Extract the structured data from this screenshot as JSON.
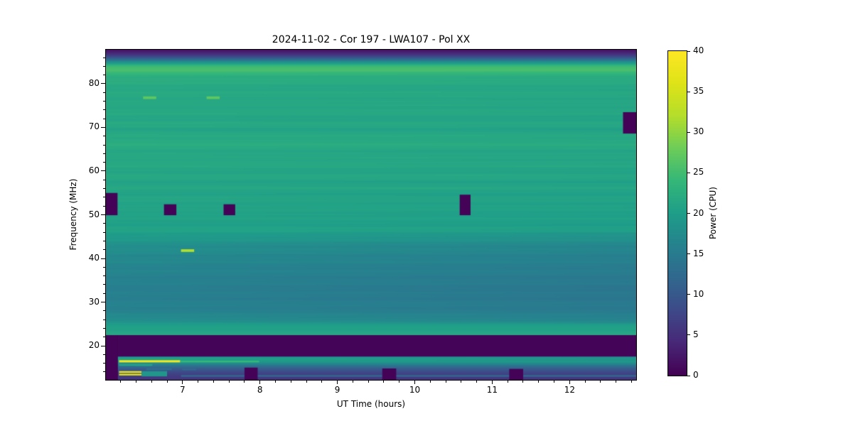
{
  "chart_data": {
    "type": "heatmap",
    "title": "2024-11-02 - Cor 197 - LWA107 - Pol XX",
    "xlabel": "UT Time (hours)",
    "ylabel": "Frequency (MHz)",
    "colorbar_label": "Power (CPU)",
    "x_range_hours": [
      6.01,
      12.86
    ],
    "y_range_mhz": [
      12.2,
      87.8
    ],
    "color_range": [
      0,
      40
    ],
    "x_major_ticks": [
      7,
      8,
      9,
      10,
      11,
      12
    ],
    "x_minor_step": 0.2,
    "y_major_ticks": [
      20,
      30,
      40,
      50,
      60,
      70,
      80
    ],
    "y_minor_step": 2,
    "colorbar_ticks": [
      0,
      5,
      10,
      15,
      20,
      25,
      30,
      35,
      40
    ],
    "colormap": "viridis",
    "grid": false,
    "viridis_anchors": [
      [
        0.0,
        "#440154"
      ],
      [
        0.1,
        "#482878"
      ],
      [
        0.2,
        "#3e4a89"
      ],
      [
        0.3,
        "#31688e"
      ],
      [
        0.4,
        "#26828e"
      ],
      [
        0.5,
        "#1f9e89"
      ],
      [
        0.6,
        "#35b779"
      ],
      [
        0.7,
        "#6dcd59"
      ],
      [
        0.8,
        "#b4de2c"
      ],
      [
        0.9,
        "#dfe318"
      ],
      [
        1.0,
        "#fde725"
      ]
    ],
    "spectrum_profile_mhz_power": [
      [
        87.8,
        1.5
      ],
      [
        87.0,
        4
      ],
      [
        86.2,
        8
      ],
      [
        85.4,
        14
      ],
      [
        84.8,
        19
      ],
      [
        84.2,
        23.5
      ],
      [
        83.7,
        25.5
      ],
      [
        83.0,
        25.0
      ],
      [
        82.0,
        23.2
      ],
      [
        81.0,
        22.3
      ],
      [
        80.0,
        22.0
      ],
      [
        78.5,
        21.6
      ],
      [
        77.0,
        21.9
      ],
      [
        75.5,
        21.4
      ],
      [
        74.0,
        21.9
      ],
      [
        72.5,
        21.3
      ],
      [
        71.0,
        21.7
      ],
      [
        69.5,
        21.2
      ],
      [
        68.0,
        21.8
      ],
      [
        66.5,
        22.3
      ],
      [
        65.0,
        21.8
      ],
      [
        63.5,
        21.3
      ],
      [
        62.0,
        21.9
      ],
      [
        60.5,
        21.2
      ],
      [
        59.0,
        21.6
      ],
      [
        57.5,
        21.0
      ],
      [
        56.0,
        21.4
      ],
      [
        54.5,
        20.8
      ],
      [
        53.0,
        21.2
      ],
      [
        51.5,
        20.7
      ],
      [
        50.0,
        20.9
      ],
      [
        48.5,
        20.4
      ],
      [
        47.0,
        20.7
      ],
      [
        45.5,
        20.2
      ],
      [
        44.5,
        19.3
      ],
      [
        43.5,
        18.4
      ],
      [
        42.5,
        17.8
      ],
      [
        41.5,
        17.4
      ],
      [
        40.0,
        17.0
      ],
      [
        38.5,
        16.6
      ],
      [
        37.0,
        16.3
      ],
      [
        35.5,
        16.0
      ],
      [
        34.0,
        15.8
      ],
      [
        32.5,
        15.6
      ],
      [
        31.0,
        15.7
      ],
      [
        29.5,
        15.9
      ],
      [
        28.0,
        16.2
      ],
      [
        27.0,
        16.8
      ],
      [
        26.0,
        17.8
      ],
      [
        25.2,
        19.0
      ],
      [
        24.4,
        20.2
      ],
      [
        23.6,
        21.0
      ],
      [
        22.9,
        21.5
      ],
      [
        22.45,
        21.5
      ],
      [
        22.4,
        0.4
      ],
      [
        17.55,
        0.4
      ],
      [
        17.45,
        19.5
      ],
      [
        17.0,
        21.0
      ],
      [
        16.6,
        20.0
      ],
      [
        15.9,
        17.0
      ],
      [
        15.4,
        13.5
      ],
      [
        14.8,
        10.5
      ],
      [
        14.0,
        8.0
      ],
      [
        13.2,
        6.5
      ],
      [
        12.2,
        5.5
      ]
    ],
    "horizontal_shading": [
      {
        "f_min": 25.0,
        "f_max": 46.0,
        "delta_left_to_right": -1.3
      },
      {
        "f_min": 46.0,
        "f_max": 83.0,
        "delta_left_to_right": -0.4
      },
      {
        "f_min": 16.6,
        "f_max": 17.45,
        "delta_left_to_right": -2.0
      }
    ],
    "texture": {
      "amp1": 0.3,
      "k1": 2.6,
      "amp2": 0.18,
      "k2": 6.3,
      "f_min": 23,
      "f_max": 86
    },
    "flagged_regions_power0": [
      {
        "t0": 6.0,
        "t1": 6.16,
        "f0": 49.9,
        "f1": 55.0
      },
      {
        "t0": 6.76,
        "t1": 6.92,
        "f0": 49.9,
        "f1": 52.4
      },
      {
        "t0": 7.53,
        "t1": 7.68,
        "f0": 49.9,
        "f1": 52.4
      },
      {
        "t0": 10.58,
        "t1": 10.72,
        "f0": 49.9,
        "f1": 54.6
      },
      {
        "t0": 12.69,
        "t1": 12.86,
        "f0": 68.6,
        "f1": 73.5
      },
      {
        "t0": 7.8,
        "t1": 7.97,
        "f0": 12.2,
        "f1": 15.0
      },
      {
        "t0": 9.58,
        "t1": 9.76,
        "f0": 12.2,
        "f1": 14.8
      },
      {
        "t0": 11.22,
        "t1": 11.4,
        "f0": 12.2,
        "f1": 14.7
      }
    ],
    "flagged_left_column": {
      "t0": 6.01,
      "t1": 6.165,
      "f0": 12.2,
      "f1": 22.4
    },
    "rfi_features": [
      {
        "t0": 6.49,
        "t1": 6.66,
        "f0": 76.5,
        "f1": 77.1,
        "power": 27
      },
      {
        "t0": 7.31,
        "t1": 7.48,
        "f0": 76.5,
        "f1": 77.1,
        "power": 27
      },
      {
        "t0": 6.98,
        "t1": 7.15,
        "f0": 41.5,
        "f1": 42.1,
        "power": 32
      },
      {
        "t0": 6.18,
        "t1": 6.97,
        "f0": 16.2,
        "f1": 16.7,
        "power": 39
      },
      {
        "t0": 6.97,
        "t1": 7.99,
        "f0": 16.2,
        "f1": 16.6,
        "power": 24
      },
      {
        "t0": 6.18,
        "t1": 6.61,
        "f0": 15.4,
        "f1": 15.8,
        "power": 21
      },
      {
        "t0": 6.18,
        "t1": 6.38,
        "f0": 14.9,
        "f1": 15.3,
        "power": 12
      },
      {
        "t0": 6.53,
        "t1": 6.86,
        "f0": 14.4,
        "f1": 14.9,
        "power": 13
      },
      {
        "t0": 6.99,
        "t1": 7.18,
        "f0": 14.4,
        "f1": 14.8,
        "power": 12
      },
      {
        "t0": 6.18,
        "t1": 6.47,
        "f0": 13.8,
        "f1": 14.2,
        "power": 38
      },
      {
        "t0": 6.18,
        "t1": 6.47,
        "f0": 13.2,
        "f1": 13.6,
        "power": 36
      },
      {
        "t0": 6.47,
        "t1": 6.8,
        "f0": 13.0,
        "f1": 14.2,
        "power": 19
      },
      {
        "t0": 6.98,
        "t1": 12.86,
        "f0": 12.9,
        "f1": 13.3,
        "power": 12
      }
    ]
  }
}
